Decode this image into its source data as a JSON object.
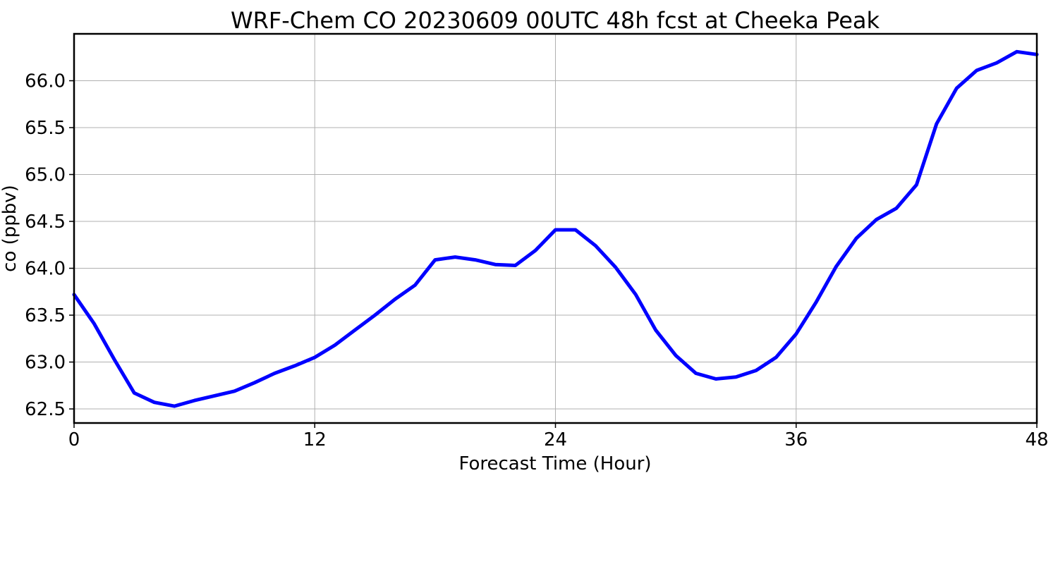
{
  "chart_data": {
    "type": "line",
    "title": "WRF-Chem CO  20230609 00UTC 48h fcst at Cheeka Peak",
    "xlabel": "Forecast Time (Hour)",
    "ylabel": "co  (ppbv)",
    "xlim": [
      0,
      48
    ],
    "ylim": [
      62.35,
      66.5
    ],
    "xticks": [
      0,
      12,
      24,
      36,
      48
    ],
    "yticks": [
      62.5,
      63.0,
      63.5,
      64.0,
      64.5,
      65.0,
      65.5,
      66.0
    ],
    "ytick_labels": [
      "62.5",
      "63.0",
      "63.5",
      "64.0",
      "64.5",
      "65.0",
      "65.5",
      "66.0"
    ],
    "grid": true,
    "line_color": "#0000ff",
    "x": [
      0,
      1,
      2,
      3,
      4,
      5,
      6,
      7,
      8,
      9,
      10,
      11,
      12,
      13,
      14,
      15,
      16,
      17,
      18,
      19,
      20,
      21,
      22,
      23,
      24,
      25,
      26,
      27,
      28,
      29,
      30,
      31,
      32,
      33,
      34,
      35,
      36,
      37,
      38,
      39,
      40,
      41,
      42,
      43,
      44,
      45,
      46,
      47,
      48
    ],
    "values": [
      63.72,
      63.41,
      63.03,
      62.67,
      62.57,
      62.53,
      62.59,
      62.64,
      62.69,
      62.78,
      62.88,
      62.96,
      63.05,
      63.18,
      63.34,
      63.5,
      63.67,
      63.82,
      64.09,
      64.12,
      64.09,
      64.04,
      64.03,
      64.19,
      64.41,
      64.41,
      64.24,
      64.01,
      63.72,
      63.34,
      63.07,
      62.88,
      62.82,
      62.84,
      62.91,
      63.05,
      63.3,
      63.64,
      64.02,
      64.32,
      64.52,
      64.64,
      64.89,
      65.54,
      65.92,
      66.11,
      66.19,
      66.31,
      66.28
    ]
  }
}
